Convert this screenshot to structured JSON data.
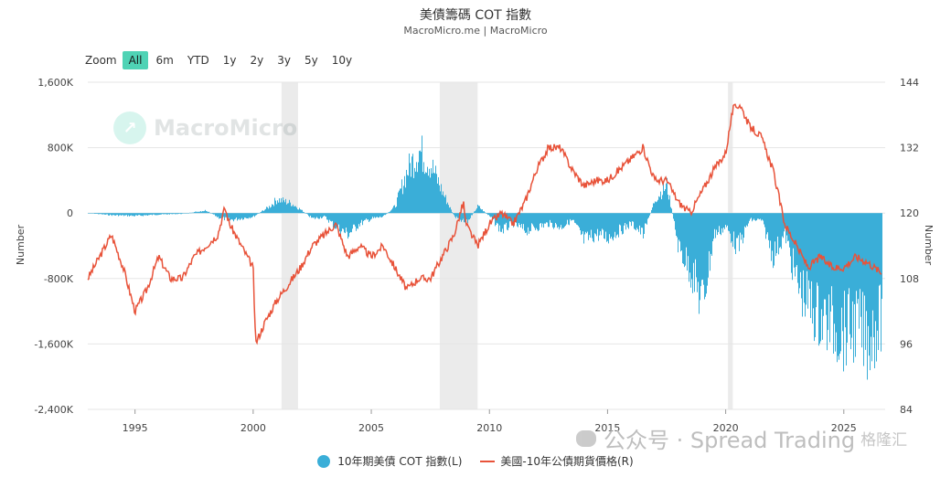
{
  "header": {
    "title": "美債籌碼 COT 指數",
    "subtitle": "MacroMicro.me | MacroMicro"
  },
  "zoom": {
    "label": "Zoom",
    "buttons": [
      "All",
      "6m",
      "YTD",
      "1y",
      "2y",
      "3y",
      "5y",
      "10y"
    ],
    "active": "All"
  },
  "watermark": {
    "text": "MacroMicro",
    "icon": "chart-logo-icon"
  },
  "overlay": {
    "text": "公众号 · Spread Trading",
    "logo_text": "格隆汇",
    "icon": "wechat-icon"
  },
  "colors": {
    "bars": "#3aaed8",
    "line": "#e8533a",
    "shading": "#ebebeb",
    "grid": "#e6e6e6",
    "accent": "#4fd3b5"
  },
  "chart_data": {
    "type": "bar+line",
    "title": "美債籌碼 COT 指數",
    "subtitle": "MacroMicro.me | MacroMicro",
    "x_ticks": [
      "1995",
      "2000",
      "2005",
      "2010",
      "2015",
      "2020",
      "2025"
    ],
    "left_axis": {
      "title": "Number",
      "ylim": [
        -2400000,
        1600000
      ],
      "ticks": [
        "1,600K",
        "800K",
        "0",
        "-800K",
        "-1,600K",
        "-2,400K"
      ]
    },
    "right_axis": {
      "title": "Number",
      "ylim": [
        84,
        144
      ],
      "ticks": [
        "144",
        "132",
        "120",
        "108",
        "96",
        "84"
      ]
    },
    "shaded_periods": [
      [
        2001.2,
        2001.9
      ],
      [
        2007.9,
        2009.5
      ],
      [
        2020.1,
        2020.3
      ]
    ],
    "series": [
      {
        "name": "10年期美債 COT 指數(L)",
        "type": "bar",
        "axis": "left",
        "points": [
          [
            1993.0,
            0
          ],
          [
            1994.0,
            -30000
          ],
          [
            1995.0,
            -40000
          ],
          [
            1996.0,
            -20000
          ],
          [
            1997.0,
            -10000
          ],
          [
            1998.0,
            40000
          ],
          [
            1998.5,
            -60000
          ],
          [
            1999.0,
            -100000
          ],
          [
            2000.0,
            -50000
          ],
          [
            2000.7,
            100000
          ],
          [
            2001.0,
            200000
          ],
          [
            2001.6,
            140000
          ],
          [
            2002.0,
            50000
          ],
          [
            2002.5,
            -80000
          ],
          [
            2003.0,
            -50000
          ],
          [
            2003.5,
            -200000
          ],
          [
            2004.0,
            -300000
          ],
          [
            2004.5,
            -150000
          ],
          [
            2005.0,
            -80000
          ],
          [
            2005.5,
            -50000
          ],
          [
            2006.0,
            100000
          ],
          [
            2006.5,
            600000
          ],
          [
            2007.0,
            900000
          ],
          [
            2007.5,
            700000
          ],
          [
            2008.0,
            300000
          ],
          [
            2008.5,
            -50000
          ],
          [
            2009.0,
            -150000
          ],
          [
            2009.5,
            100000
          ],
          [
            2010.0,
            -50000
          ],
          [
            2010.5,
            -250000
          ],
          [
            2011.0,
            -150000
          ],
          [
            2011.5,
            -250000
          ],
          [
            2012.0,
            -200000
          ],
          [
            2012.5,
            -150000
          ],
          [
            2013.0,
            -200000
          ],
          [
            2013.5,
            -100000
          ],
          [
            2014.0,
            -400000
          ],
          [
            2014.5,
            -300000
          ],
          [
            2015.0,
            -350000
          ],
          [
            2015.5,
            -250000
          ],
          [
            2016.0,
            -150000
          ],
          [
            2016.5,
            -300000
          ],
          [
            2017.0,
            200000
          ],
          [
            2017.5,
            400000
          ],
          [
            2018.0,
            -500000
          ],
          [
            2018.5,
            -800000
          ],
          [
            2019.0,
            -1300000
          ],
          [
            2019.5,
            -300000
          ],
          [
            2020.0,
            -200000
          ],
          [
            2020.5,
            -500000
          ],
          [
            2021.0,
            -100000
          ],
          [
            2021.5,
            -100000
          ],
          [
            2022.0,
            -600000
          ],
          [
            2022.5,
            -300000
          ],
          [
            2023.0,
            -1000000
          ],
          [
            2023.5,
            -1300000
          ],
          [
            2024.0,
            -1500000
          ],
          [
            2024.5,
            -1600000
          ],
          [
            2025.0,
            -1700000
          ],
          [
            2025.5,
            -1600000
          ],
          [
            2026.0,
            -1800000
          ],
          [
            2026.6,
            -1500000
          ]
        ]
      },
      {
        "name": "美國-10年公債期貨價格(R)",
        "type": "line",
        "axis": "right",
        "points": [
          [
            1993.0,
            108
          ],
          [
            1993.5,
            112
          ],
          [
            1994.0,
            116
          ],
          [
            1994.5,
            110
          ],
          [
            1995.0,
            102
          ],
          [
            1995.5,
            106
          ],
          [
            1996.0,
            112
          ],
          [
            1996.5,
            108
          ],
          [
            1997.0,
            108
          ],
          [
            1997.5,
            112
          ],
          [
            1998.0,
            114
          ],
          [
            1998.5,
            116
          ],
          [
            1998.8,
            121
          ],
          [
            1999.0,
            118
          ],
          [
            1999.5,
            114
          ],
          [
            2000.0,
            110
          ],
          [
            2000.1,
            96
          ],
          [
            2000.5,
            100
          ],
          [
            2001.0,
            104
          ],
          [
            2001.5,
            107
          ],
          [
            2002.0,
            110
          ],
          [
            2002.5,
            114
          ],
          [
            2003.0,
            116
          ],
          [
            2003.5,
            118
          ],
          [
            2004.0,
            112
          ],
          [
            2004.5,
            114
          ],
          [
            2005.0,
            112
          ],
          [
            2005.5,
            114
          ],
          [
            2006.0,
            110
          ],
          [
            2006.5,
            106
          ],
          [
            2007.0,
            108
          ],
          [
            2007.5,
            108
          ],
          [
            2008.0,
            112
          ],
          [
            2008.5,
            116
          ],
          [
            2008.9,
            122
          ],
          [
            2009.0,
            118
          ],
          [
            2009.5,
            114
          ],
          [
            2010.0,
            118
          ],
          [
            2010.5,
            120
          ],
          [
            2011.0,
            118
          ],
          [
            2011.5,
            122
          ],
          [
            2012.0,
            128
          ],
          [
            2012.5,
            132
          ],
          [
            2013.0,
            132
          ],
          [
            2013.5,
            128
          ],
          [
            2014.0,
            125
          ],
          [
            2014.5,
            126
          ],
          [
            2015.0,
            126
          ],
          [
            2015.5,
            128
          ],
          [
            2016.0,
            130
          ],
          [
            2016.5,
            132
          ],
          [
            2017.0,
            126
          ],
          [
            2017.5,
            126
          ],
          [
            2018.0,
            122
          ],
          [
            2018.5,
            120
          ],
          [
            2019.0,
            124
          ],
          [
            2019.5,
            128
          ],
          [
            2020.0,
            131
          ],
          [
            2020.3,
            139
          ],
          [
            2020.6,
            140
          ],
          [
            2021.0,
            136
          ],
          [
            2021.5,
            134
          ],
          [
            2022.0,
            128
          ],
          [
            2022.5,
            118
          ],
          [
            2023.0,
            114
          ],
          [
            2023.5,
            110
          ],
          [
            2024.0,
            112
          ],
          [
            2024.5,
            110
          ],
          [
            2025.0,
            110
          ],
          [
            2025.5,
            112
          ],
          [
            2026.0,
            111
          ],
          [
            2026.6,
            109
          ]
        ]
      }
    ],
    "legend": {
      "position": "bottom-center",
      "items": [
        "10年期美債 COT 指數(L)",
        "美國-10年公債期貨價格(R)"
      ]
    },
    "grid": true
  }
}
